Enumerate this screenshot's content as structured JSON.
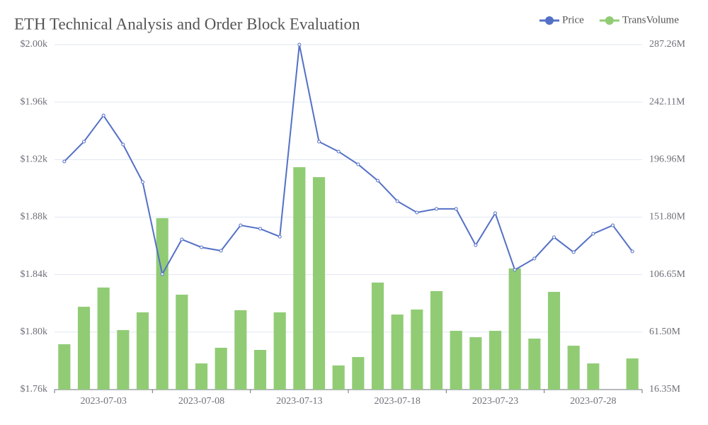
{
  "chart_data": {
    "type": "bar-line",
    "title": "ETH Technical Analysis and Order Block Evaluation",
    "categories": [
      null,
      null,
      "2023-07-03",
      null,
      null,
      null,
      null,
      "2023-07-08",
      null,
      null,
      null,
      null,
      "2023-07-13",
      null,
      null,
      null,
      null,
      "2023-07-18",
      null,
      null,
      null,
      null,
      "2023-07-23",
      null,
      null,
      null,
      null,
      "2023-07-28",
      null,
      null
    ],
    "series": [
      {
        "name": "Price",
        "type": "line",
        "color": "#5470c6",
        "axis": "y",
        "values": [
          1918.7,
          1932.5,
          1950.7,
          1930.5,
          1904.4,
          1840.3,
          1864.5,
          1859,
          1856.6,
          1874.3,
          1871.9,
          1866.4,
          2000,
          1932.5,
          1925.6,
          1916.7,
          1905.4,
          1891.1,
          1883.2,
          1885.7,
          1885.7,
          1860.5,
          1882.7,
          1843.3,
          1851.2,
          1866,
          1855.6,
          1868.4,
          1874.3,
          1856.1
        ]
      },
      {
        "name": "TransVolume",
        "type": "bar",
        "color": "#91cc75",
        "axis": "y2",
        "values": [
          51.95,
          81.4,
          96.5,
          63.1,
          77.0,
          151.0,
          90.9,
          36.9,
          49.2,
          78.7,
          47.5,
          77.0,
          191.0,
          183.2,
          35.3,
          41.9,
          100.4,
          75.3,
          79.2,
          93.7,
          62.5,
          57.5,
          62.5,
          111.5,
          56.4,
          93.1,
          50.8,
          36.9,
          16.35,
          40.8
        ]
      }
    ],
    "ylim": [
      1760,
      2000
    ],
    "yticks": [
      {
        "value": 1760,
        "label": "$1.76k"
      },
      {
        "value": 1800,
        "label": "$1.80k"
      },
      {
        "value": 1840,
        "label": "$1.84k"
      },
      {
        "value": 1880,
        "label": "$1.88k"
      },
      {
        "value": 1920,
        "label": "$1.92k"
      },
      {
        "value": 1960,
        "label": "$1.96k"
      },
      {
        "value": 2000,
        "label": "$2.00k"
      }
    ],
    "y2lim": [
      16.35,
      287.26
    ],
    "y2ticks": [
      {
        "value": 16.35,
        "label": "16.35M"
      },
      {
        "value": 61.5,
        "label": "61.50M"
      },
      {
        "value": 106.65,
        "label": "106.65M"
      },
      {
        "value": 151.8,
        "label": "151.80M"
      },
      {
        "value": 196.96,
        "label": "196.96M"
      },
      {
        "value": 242.11,
        "label": "242.11M"
      },
      {
        "value": 287.26,
        "label": "287.26M"
      }
    ],
    "grid": true,
    "legend": "top-right"
  }
}
